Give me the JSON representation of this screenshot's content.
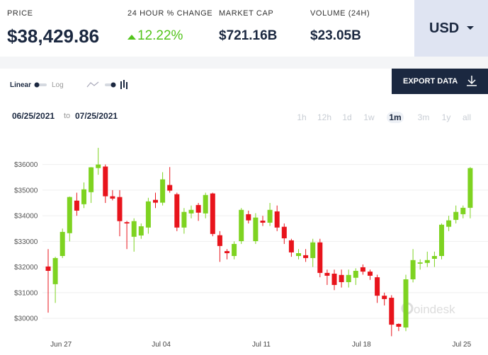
{
  "header": {
    "price_label": "PRICE",
    "price": "$38,429.86",
    "change_label": "24 HOUR % CHANGE",
    "change": "12.22%",
    "market_cap_label": "MARKET CAP",
    "market_cap": "$721.16B",
    "volume_label": "VOLUME (24H)",
    "volume": "$23.05B",
    "currency": "USD"
  },
  "toolbar": {
    "linear": "Linear",
    "log": "Log",
    "export": "EXPORT DATA"
  },
  "date_range": {
    "start": "06/25/2021",
    "separator": "to",
    "end": "07/25/2021"
  },
  "ranges": [
    "1h",
    "12h",
    "1d",
    "1w",
    "1m",
    "3m",
    "1y",
    "all"
  ],
  "active_range": "1m",
  "watermark": "oindesk",
  "chart_data": {
    "type": "candlestick",
    "categories": [
      null,
      null,
      "Jun 27",
      null,
      null,
      null,
      null,
      null,
      null,
      null,
      null,
      null,
      null,
      null,
      null,
      null,
      "Jul 04",
      null,
      null,
      null,
      null,
      null,
      null,
      null,
      null,
      null,
      null,
      null,
      null,
      null,
      "Jul 11",
      null,
      null,
      null,
      null,
      null,
      null,
      null,
      null,
      null,
      null,
      null,
      null,
      null,
      "Jul 18",
      null,
      null,
      null,
      null,
      null,
      null,
      null,
      null,
      null,
      null,
      null,
      null,
      null,
      "Jul 25",
      null
    ],
    "open": [
      32020,
      31330,
      32430,
      33320,
      34590,
      34450,
      34920,
      35860,
      35920,
      34760,
      34730,
      33750,
      33180,
      33230,
      33540,
      34620,
      34510,
      35200,
      34840,
      33540,
      34090,
      34420,
      34090,
      34870,
      33240,
      32620,
      32430,
      33010,
      34060,
      33010,
      33810,
      33730,
      34170,
      33570,
      33040,
      32430,
      32460,
      32350,
      32960,
      31770,
      31740,
      31690,
      31410,
      31580,
      31990,
      31820,
      31600,
      30880,
      30800,
      29780,
      29640,
      31520,
      32130,
      32160,
      32320,
      32430,
      33570,
      33840,
      34060,
      34310
    ],
    "high": [
      32700,
      32400,
      33500,
      34750,
      34900,
      35300,
      35900,
      36650,
      36000,
      35000,
      35000,
      33800,
      33900,
      33700,
      34700,
      34900,
      35700,
      35900,
      34900,
      34300,
      34400,
      34500,
      34900,
      34900,
      33400,
      32700,
      33000,
      34300,
      34200,
      34100,
      34000,
      34500,
      34400,
      33700,
      33100,
      32700,
      32700,
      33100,
      33100,
      31900,
      31900,
      31900,
      31900,
      31950,
      32100,
      31900,
      31700,
      31000,
      30900,
      29800,
      31700,
      32700,
      32300,
      32600,
      32600,
      33700,
      34000,
      34400,
      34400,
      35900
    ],
    "low": [
      30220,
      30600,
      32350,
      33000,
      34000,
      34300,
      34500,
      35600,
      34500,
      34600,
      33200,
      32700,
      32600,
      33100,
      33300,
      34300,
      34400,
      34900,
      33400,
      33300,
      33900,
      33800,
      33900,
      33200,
      32200,
      32300,
      32300,
      32900,
      33700,
      32900,
      33600,
      33600,
      33400,
      32900,
      32400,
      32300,
      32200,
      32000,
      31600,
      31300,
      31100,
      31200,
      31200,
      31300,
      31700,
      31500,
      30600,
      30500,
      29300,
      29500,
      29500,
      31400,
      31900,
      32000,
      32000,
      32300,
      33400,
      33700,
      33900,
      33900
    ],
    "close": [
      31850,
      32350,
      33370,
      34730,
      34200,
      35030,
      35890,
      36000,
      34760,
      34670,
      33790,
      33700,
      33790,
      33590,
      34560,
      34510,
      35420,
      34980,
      33540,
      34150,
      34230,
      34120,
      34810,
      33290,
      32820,
      32540,
      32900,
      34230,
      33820,
      33930,
      33730,
      34230,
      33540,
      33120,
      32570,
      32540,
      32350,
      32960,
      31770,
      31660,
      31300,
      31410,
      31690,
      31850,
      31820,
      31660,
      30880,
      30750,
      29750,
      29670,
      31520,
      32270,
      32180,
      32270,
      32430,
      33650,
      33820,
      34150,
      34310,
      35860
    ],
    "up_color": "#7ed321",
    "down_color": "#e8141c",
    "ylim": [
      29450,
      36900
    ],
    "yticks": [
      {
        "value": 30000,
        "label": "$30000"
      },
      {
        "value": 31000,
        "label": "$31000"
      },
      {
        "value": 32000,
        "label": "$32000"
      },
      {
        "value": 33000,
        "label": "$33000"
      },
      {
        "value": 34000,
        "label": "$34000"
      },
      {
        "value": 35000,
        "label": "$35000"
      },
      {
        "value": 36000,
        "label": "$36000"
      }
    ],
    "grid": true
  }
}
